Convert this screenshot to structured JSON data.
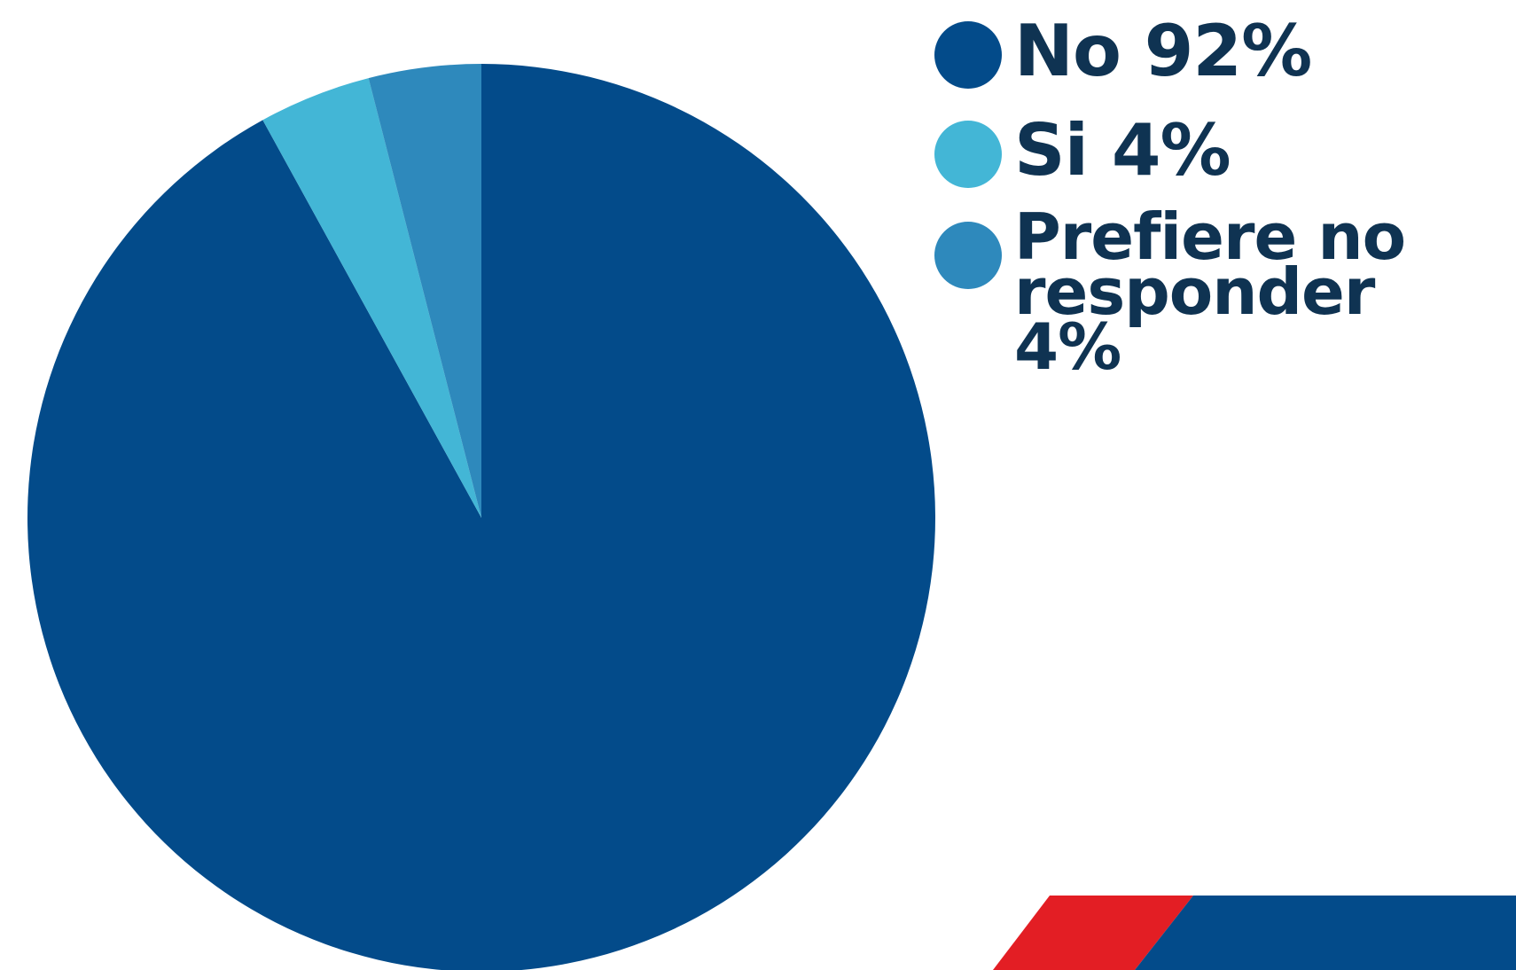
{
  "chart_data": {
    "type": "pie",
    "title": "",
    "slices": [
      {
        "label": "No",
        "value": 92,
        "display": "No 92%",
        "color": "#034b8a"
      },
      {
        "label": "Si",
        "value": 4,
        "display": "Si 4%",
        "color": "#43b6d6"
      },
      {
        "label": "Prefiere no responder",
        "value": 4,
        "display": "Prefiere no responder 4%",
        "color": "#2e89bc"
      }
    ],
    "start_angle_deg": 0,
    "direction": "clockwise",
    "legend_position": "top-right"
  },
  "decor": {
    "accent_red": "#e31e24",
    "accent_blue": "#034b8a"
  }
}
